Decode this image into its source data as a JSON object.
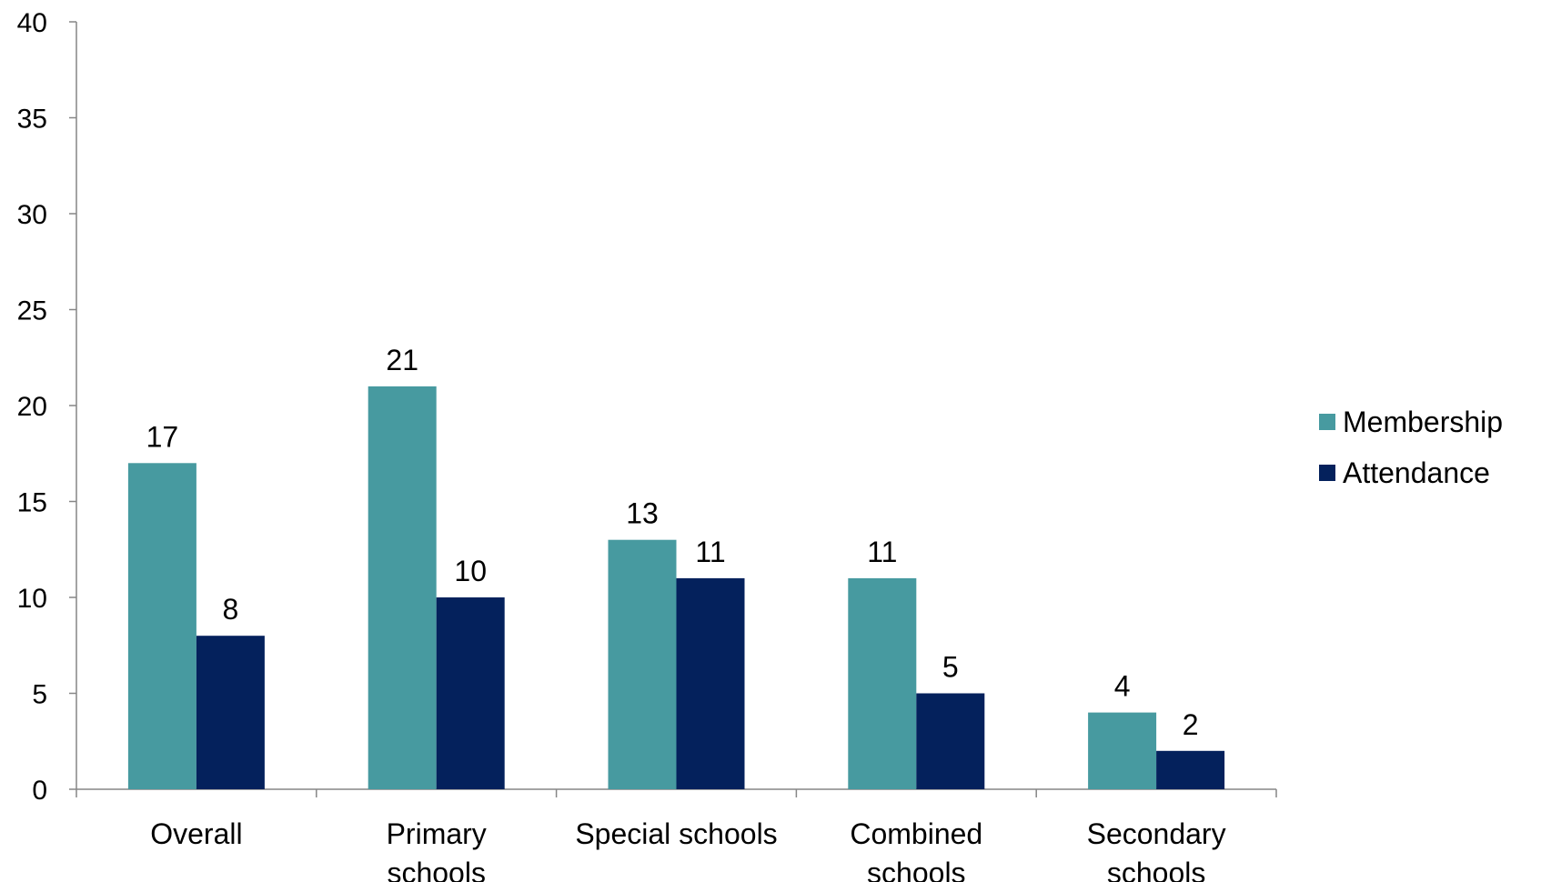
{
  "chart_data": {
    "type": "bar",
    "categories": [
      [
        "Overall"
      ],
      [
        "Primary",
        "schools"
      ],
      [
        "Special schools"
      ],
      [
        "Combined",
        "schools"
      ],
      [
        "Secondary",
        "schools"
      ]
    ],
    "series": [
      {
        "name": "Membership",
        "color": "#479aa0",
        "values": [
          17,
          21,
          13,
          11,
          4
        ]
      },
      {
        "name": "Attendance",
        "color": "#04215c",
        "values": [
          8,
          10,
          11,
          5,
          2
        ]
      }
    ],
    "ylim": [
      0,
      40
    ],
    "yticks": [
      0,
      5,
      10,
      15,
      20,
      25,
      30,
      35,
      40
    ],
    "grid": false,
    "data_labels": true,
    "legend_position": "right",
    "axis_color": "#868686"
  }
}
